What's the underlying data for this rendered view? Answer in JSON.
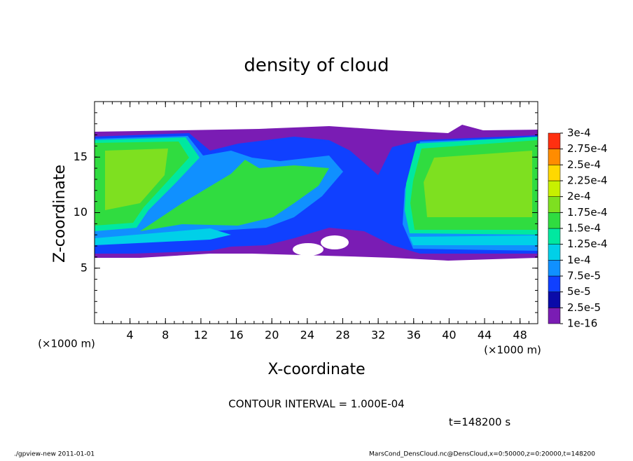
{
  "chart_data": {
    "type": "contour",
    "title": "density of cloud",
    "xlabel": "X-coordinate",
    "ylabel": "Z-coordinate",
    "xunit": "(×1000 m)",
    "yunit": "(×1000 m)",
    "xlim": [
      0,
      50
    ],
    "ylim": [
      0,
      20
    ],
    "xticks": [
      4,
      8,
      12,
      16,
      20,
      24,
      28,
      32,
      36,
      40,
      44,
      48
    ],
    "yticks": [
      5,
      10,
      15
    ],
    "xminorticks": [
      1,
      2,
      3,
      4,
      5,
      6,
      7,
      8,
      9,
      10,
      11,
      12,
      13,
      14,
      15,
      16,
      17,
      18,
      19,
      20,
      21,
      22,
      23,
      24,
      25,
      26,
      27,
      28,
      29,
      30,
      31,
      32,
      33,
      34,
      35,
      36,
      37,
      38,
      39,
      40,
      41,
      42,
      43,
      44,
      45,
      46,
      47,
      48,
      49
    ],
    "yminorticks": [
      1,
      2,
      3,
      4,
      5,
      6,
      7,
      8,
      9,
      10,
      11,
      12,
      13,
      14,
      15,
      16,
      17,
      18,
      19
    ],
    "colorbar": {
      "levels": [
        {
          "value": 1e-16,
          "label": "1e-16"
        },
        {
          "value": 2.5e-05,
          "label": "2.5e-5"
        },
        {
          "value": 5e-05,
          "label": "5e-5"
        },
        {
          "value": 7.5e-05,
          "label": "7.5e-5"
        },
        {
          "value": 0.0001,
          "label": "1e-4"
        },
        {
          "value": 0.000125,
          "label": "1.25e-4"
        },
        {
          "value": 0.00015,
          "label": "1.5e-4"
        },
        {
          "value": 0.000175,
          "label": "1.75e-4"
        },
        {
          "value": 0.0002,
          "label": "2e-4"
        },
        {
          "value": 0.000225,
          "label": "2.25e-4"
        },
        {
          "value": 0.00025,
          "label": "2.5e-4"
        },
        {
          "value": 0.000275,
          "label": "2.75e-4"
        },
        {
          "value": 0.0003,
          "label": "3e-4"
        }
      ],
      "colors": [
        "#7a1cb4",
        "#0a0aa8",
        "#1040ff",
        "#1090ff",
        "#00d0e8",
        "#00e8a0",
        "#30dc40",
        "#7ee020",
        "#c8f000",
        "#ffd800",
        "#ff8c00",
        "#ff3010",
        "#ff8888"
      ]
    },
    "contour_interval": "CONTOUR INTERVAL = 1.000E-04",
    "time_label": "t=148200 s",
    "footer_left": "./gpview-new   2011-01-01",
    "footer_right": "MarsCond_DensCloud.nc@DensCloud,x=0:50000,z=0:20000,t=148200"
  }
}
